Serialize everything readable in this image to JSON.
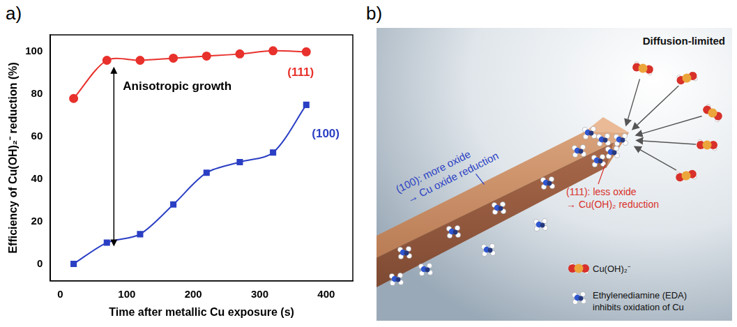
{
  "panel_labels": [
    "a)",
    "b)"
  ],
  "chart_data": {
    "type": "line",
    "x_label": "Time after metallic Cu exposure (s)",
    "y_label": "Efficiency of Cu(OH)₂⁻ reduction (%)",
    "annotations": [
      "Anisotropic growth"
    ],
    "x": [
      20,
      70,
      120,
      170,
      220,
      270,
      320,
      370
    ],
    "series": [
      {
        "name": "(111)",
        "color": "#e8312c",
        "marker": "circle",
        "values": [
          78,
          96,
          96,
          97,
          98,
          99,
          100.5,
          100
        ]
      },
      {
        "name": "(100)",
        "color": "#2b3fc4",
        "marker": "square",
        "values": [
          0,
          10,
          14,
          28,
          43,
          48,
          52.5,
          75
        ]
      }
    ],
    "xlim": [
      -15,
      440
    ],
    "xticks": [
      0,
      100,
      200,
      300,
      400
    ],
    "ylim": [
      -8,
      108
    ],
    "yticks": [
      0,
      20,
      40,
      60,
      80,
      100
    ],
    "grid": false
  },
  "diagram": {
    "title": "Diffusion-limited",
    "face_100": [
      "(100): more oxide",
      "→ Cu oxide reduction"
    ],
    "face_111": [
      "(111): less oxide",
      "→ Cu(OH)₂ reduction"
    ],
    "key": [
      {
        "item": "Cu(OH)₂⁻",
        "text": [
          "Cu(OH)₂⁻"
        ]
      },
      {
        "item": "EDA",
        "text": [
          "Ethylenediamine (EDA)",
          "inhibits oxidation of Cu"
        ]
      }
    ]
  }
}
